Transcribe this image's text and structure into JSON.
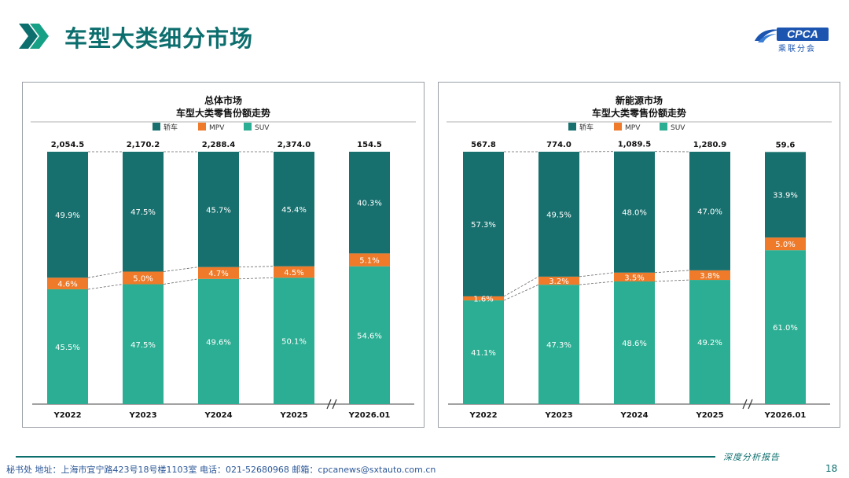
{
  "page": {
    "title": "车型大类细分市场",
    "logo_text": "CPCA",
    "logo_subtext": "乘联分会",
    "footer_info": "秘书处   地址：上海市宜宁路423号18号楼1103室   电话：021-52680968   邮箱：cpcanews@sxtauto.com.cn",
    "footer_tag": "深度分析报告",
    "page_number": "18",
    "colors": {
      "sedan": "#17706e",
      "mpv": "#ee7a2a",
      "suv": "#2bae93",
      "brand": "#0d6e6e"
    }
  },
  "chart_data": [
    {
      "type": "bar",
      "stacked": "percent",
      "title": "总体市场",
      "subtitle": "车型大类零售份额走势",
      "legend_position": "top",
      "categories": [
        "Y2022",
        "Y2023",
        "Y2024",
        "Y2025",
        "Y2026.01"
      ],
      "totals": [
        "2,054.5",
        "2,170.2",
        "2,288.4",
        "2,374.0",
        "154.5"
      ],
      "axis_break": "//",
      "series": [
        {
          "name": "SUV",
          "values": [
            45.5,
            47.5,
            49.6,
            50.1,
            54.6
          ],
          "labels": [
            "45.5%",
            "47.5%",
            "49.6%",
            "50.1%",
            "54.6%"
          ]
        },
        {
          "name": "MPV",
          "values": [
            4.6,
            5.0,
            4.7,
            4.5,
            5.1
          ],
          "labels": [
            "4.6%",
            "5.0%",
            "4.7%",
            "4.5%",
            "5.1%"
          ]
        },
        {
          "name": "轿车",
          "values": [
            49.9,
            47.5,
            45.7,
            45.4,
            40.3
          ],
          "labels": [
            "49.9%",
            "47.5%",
            "45.7%",
            "45.4%",
            "40.3%"
          ]
        }
      ]
    },
    {
      "type": "bar",
      "stacked": "percent",
      "title": "新能源市场",
      "subtitle": "车型大类零售份额走势",
      "legend_position": "top",
      "categories": [
        "Y2022",
        "Y2023",
        "Y2024",
        "Y2025",
        "Y2026.01"
      ],
      "totals": [
        "567.8",
        "774.0",
        "1,089.5",
        "1,280.9",
        "59.6"
      ],
      "axis_break": "//",
      "series": [
        {
          "name": "SUV",
          "values": [
            41.1,
            47.3,
            48.6,
            49.2,
            61.0
          ],
          "labels": [
            "41.1%",
            "47.3%",
            "48.6%",
            "49.2%",
            "61.0%"
          ]
        },
        {
          "name": "MPV",
          "values": [
            1.6,
            3.2,
            3.5,
            3.8,
            5.0
          ],
          "labels": [
            "1.6%",
            "3.2%",
            "3.5%",
            "3.8%",
            "5.0%"
          ]
        },
        {
          "name": "轿车",
          "values": [
            57.3,
            49.5,
            48.0,
            47.0,
            33.9
          ],
          "labels": [
            "57.3%",
            "49.5%",
            "48.0%",
            "47.0%",
            "33.9%"
          ]
        }
      ]
    }
  ]
}
